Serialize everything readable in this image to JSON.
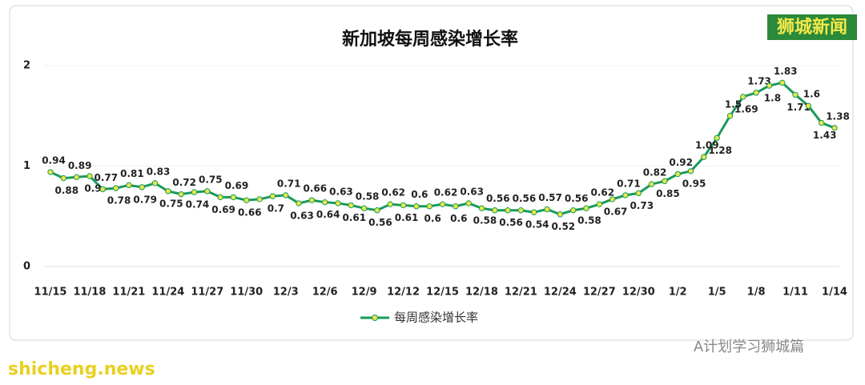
{
  "chart_data": {
    "type": "line",
    "title": "新加坡每周感染增长率",
    "categories": [
      "11/15",
      null,
      null,
      "11/18",
      null,
      null,
      "11/21",
      null,
      null,
      "11/24",
      null,
      null,
      "11/27",
      null,
      null,
      "11/30",
      null,
      null,
      "12/3",
      null,
      null,
      "12/6",
      null,
      null,
      "12/9",
      null,
      null,
      "12/12",
      null,
      null,
      "12/15",
      null,
      null,
      "12/18",
      null,
      null,
      "12/21",
      null,
      null,
      "12/24",
      null,
      null,
      "12/27",
      null,
      null,
      "12/30",
      null,
      null,
      "1/2",
      null,
      null,
      "1/5",
      null,
      null,
      "1/8",
      null,
      null,
      "1/11",
      null,
      null,
      "1/14"
    ],
    "series": [
      {
        "name": "每周感染增长率",
        "color": "#1a9a5a",
        "marker_color": "#e8e84a",
        "values": [
          0.94,
          0.88,
          0.89,
          0.9,
          0.77,
          0.78,
          0.81,
          0.79,
          0.83,
          0.75,
          0.72,
          0.74,
          0.75,
          0.69,
          0.69,
          0.66,
          0.67,
          0.7,
          0.71,
          0.63,
          0.66,
          0.64,
          0.63,
          0.61,
          0.58,
          0.56,
          0.62,
          0.61,
          0.6,
          0.6,
          0.62,
          0.6,
          0.63,
          0.58,
          0.56,
          0.56,
          0.56,
          0.54,
          0.57,
          0.52,
          0.56,
          0.58,
          0.62,
          0.67,
          0.71,
          0.73,
          0.82,
          0.85,
          0.92,
          0.95,
          1.09,
          1.28,
          1.5,
          1.69,
          1.73,
          1.8,
          1.83,
          1.71,
          1.6,
          1.43,
          1.38
        ],
        "value_labels": [
          "0.94",
          "0.88",
          "0.89",
          "0.9",
          "0.77",
          "0.78",
          "0.81",
          "0.79",
          "0.83",
          "0.75",
          "0.72",
          "0.74",
          "0.75",
          "0.69",
          "0.69",
          "0.66",
          null,
          "0.7",
          "0.71",
          "0.63",
          "0.66",
          "0.64",
          "0.63",
          "0.61",
          "0.58",
          "0.56",
          "0.62",
          "0.61",
          "0.6",
          "0.6",
          "0.62",
          "0.6",
          "0.63",
          "0.58",
          "0.56",
          "0.56",
          "0.56",
          "0.54",
          "0.57",
          "0.52",
          "0.56",
          "0.58",
          "0.62",
          "0.67",
          "0.71",
          "0.73",
          "0.82",
          "0.85",
          "0.92",
          "0.95",
          "1.09",
          "1.28",
          "1.5",
          "1.69",
          "1.73",
          "1.8",
          "1.83",
          "1.71",
          "1.6",
          "1.43",
          "1.38"
        ]
      }
    ],
    "ylim": [
      0,
      2
    ],
    "yticks": [
      0,
      1,
      2
    ],
    "grid": true
  },
  "watermarks": {
    "top_right": "狮城新闻",
    "bottom_right": "A计划学习狮城篇",
    "bottom_left": "shicheng.news"
  }
}
